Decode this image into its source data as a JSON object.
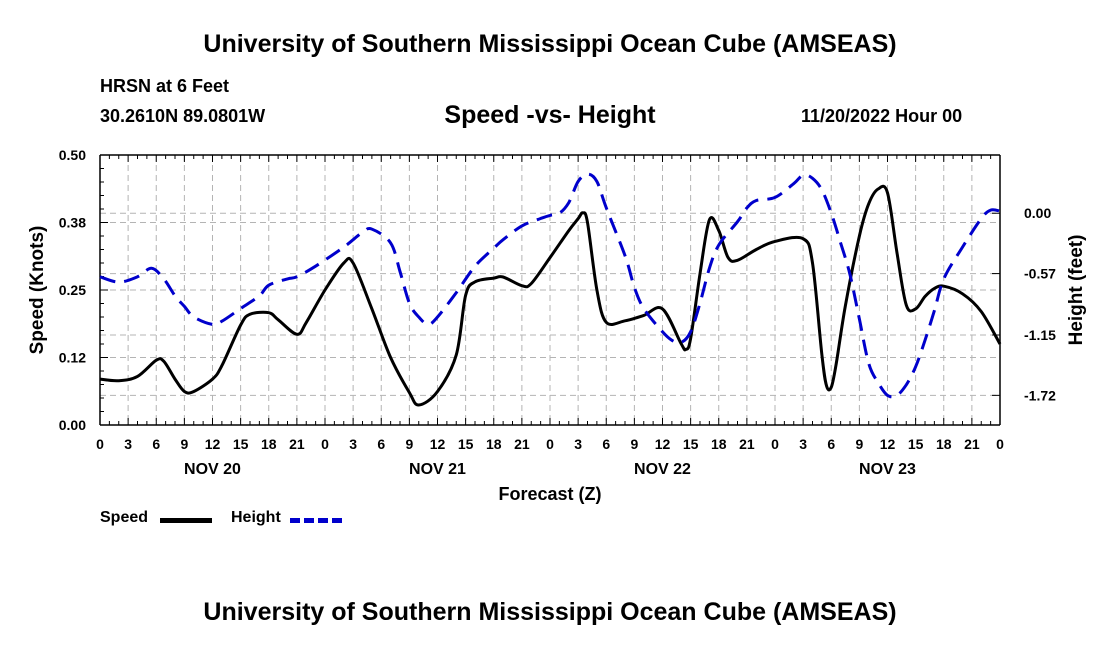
{
  "header": {
    "title": "University of Southern Mississippi Ocean Cube (AMSEAS)",
    "station": "HRSN at 6 Feet",
    "coords": "30.2610N  89.0801W",
    "subtitle": "Speed -vs- Height",
    "datetime": "11/20/2022 Hour 00"
  },
  "footer": {
    "title": "University of Southern Mississippi Ocean Cube (AMSEAS)"
  },
  "legend": {
    "speed_label": "Speed",
    "height_label": "Height"
  },
  "colors": {
    "speed": "#000000",
    "height": "#0000cc",
    "grid": "#b4b4b4"
  },
  "chart_data": {
    "type": "line",
    "xlabel": "Forecast (Z)",
    "ylabel_left": "Speed (Knots)",
    "ylabel_right": "Height (feet)",
    "x_unit": "hours from 11/20/2022 00Z",
    "xlim": [
      0,
      96
    ],
    "x_tick_labels": [
      "0",
      "3",
      "6",
      "9",
      "12",
      "15",
      "18",
      "21",
      "0",
      "3",
      "6",
      "9",
      "12",
      "15",
      "18",
      "21",
      "0",
      "3",
      "6",
      "9",
      "12",
      "15",
      "18",
      "21",
      "0",
      "3",
      "6",
      "9",
      "12",
      "15",
      "18",
      "21",
      "0"
    ],
    "day_labels": [
      {
        "label": "NOV 20",
        "hour": 12
      },
      {
        "label": "NOV 21",
        "hour": 36
      },
      {
        "label": "NOV 22",
        "hour": 60
      },
      {
        "label": "NOV 23",
        "hour": 84
      }
    ],
    "y_left": {
      "min": 0,
      "max": 0.5,
      "ticks": [
        0.0,
        0.125,
        0.25,
        0.375,
        0.5
      ],
      "tick_labels": [
        "0.00",
        "0.12",
        "0.25",
        "0.38",
        "0.50"
      ]
    },
    "y_right": {
      "min": -2.0,
      "max": 0.55,
      "ticks": [
        0.0,
        -0.57,
        -1.15,
        -1.72
      ],
      "tick_labels": [
        "0.00",
        "-0.57",
        "-1.15",
        "-1.72"
      ]
    },
    "series": [
      {
        "name": "Speed",
        "axis": "left",
        "style": "solid",
        "points": [
          [
            0,
            0.085
          ],
          [
            2,
            0.082
          ],
          [
            4,
            0.09
          ],
          [
            6,
            0.12
          ],
          [
            6.8,
            0.118
          ],
          [
            8,
            0.085
          ],
          [
            9,
            0.062
          ],
          [
            10,
            0.062
          ],
          [
            12,
            0.085
          ],
          [
            13,
            0.11
          ],
          [
            15,
            0.185
          ],
          [
            16,
            0.205
          ],
          [
            18,
            0.208
          ],
          [
            19,
            0.195
          ],
          [
            21,
            0.168
          ],
          [
            22,
            0.19
          ],
          [
            24,
            0.25
          ],
          [
            26,
            0.3
          ],
          [
            27,
            0.3
          ],
          [
            29,
            0.215
          ],
          [
            31,
            0.125
          ],
          [
            33,
            0.06
          ],
          [
            34,
            0.037
          ],
          [
            36,
            0.062
          ],
          [
            38,
            0.13
          ],
          [
            39,
            0.24
          ],
          [
            40,
            0.265
          ],
          [
            42,
            0.272
          ],
          [
            43,
            0.274
          ],
          [
            45,
            0.258
          ],
          [
            46,
            0.262
          ],
          [
            48,
            0.31
          ],
          [
            50,
            0.36
          ],
          [
            51,
            0.382
          ],
          [
            51.5,
            0.393
          ],
          [
            52,
            0.375
          ],
          [
            53,
            0.25
          ],
          [
            54,
            0.19
          ],
          [
            56,
            0.193
          ],
          [
            58,
            0.203
          ],
          [
            60,
            0.215
          ],
          [
            62,
            0.15
          ],
          [
            62.5,
            0.14
          ],
          [
            63,
            0.16
          ],
          [
            64,
            0.28
          ],
          [
            65,
            0.38
          ],
          [
            66,
            0.36
          ],
          [
            67,
            0.31
          ],
          [
            68,
            0.305
          ],
          [
            70,
            0.325
          ],
          [
            72,
            0.34
          ],
          [
            75,
            0.345
          ],
          [
            76,
            0.3
          ],
          [
            77,
            0.13
          ],
          [
            77.5,
            0.072
          ],
          [
            78,
            0.07
          ],
          [
            78.5,
            0.11
          ],
          [
            79.5,
            0.22
          ],
          [
            81,
            0.35
          ],
          [
            82,
            0.41
          ],
          [
            83,
            0.437
          ],
          [
            84,
            0.43
          ],
          [
            85,
            0.32
          ],
          [
            86,
            0.222
          ],
          [
            87,
            0.215
          ],
          [
            88,
            0.238
          ],
          [
            89,
            0.253
          ],
          [
            90,
            0.257
          ],
          [
            92,
            0.243
          ],
          [
            94,
            0.21
          ],
          [
            96,
            0.15
          ]
        ]
      },
      {
        "name": "Height",
        "axis": "right",
        "style": "dashed",
        "points": [
          [
            0,
            -0.6
          ],
          [
            2,
            -0.65
          ],
          [
            4,
            -0.6
          ],
          [
            5.5,
            -0.52
          ],
          [
            6.8,
            -0.62
          ],
          [
            8,
            -0.78
          ],
          [
            9,
            -0.88
          ],
          [
            10,
            -0.98
          ],
          [
            12,
            -1.05
          ],
          [
            13,
            -1.02
          ],
          [
            15,
            -0.9
          ],
          [
            17,
            -0.78
          ],
          [
            18,
            -0.68
          ],
          [
            20,
            -0.62
          ],
          [
            21,
            -0.6
          ],
          [
            23,
            -0.5
          ],
          [
            26,
            -0.32
          ],
          [
            28,
            -0.18
          ],
          [
            29,
            -0.15
          ],
          [
            31,
            -0.28
          ],
          [
            32,
            -0.55
          ],
          [
            33,
            -0.85
          ],
          [
            34,
            -0.98
          ],
          [
            35,
            -1.05
          ],
          [
            36,
            -0.98
          ],
          [
            38,
            -0.75
          ],
          [
            40,
            -0.5
          ],
          [
            42,
            -0.33
          ],
          [
            43,
            -0.25
          ],
          [
            45,
            -0.12
          ],
          [
            47,
            -0.05
          ],
          [
            48,
            -0.02
          ],
          [
            49,
            0.0
          ],
          [
            50,
            0.1
          ],
          [
            51,
            0.3
          ],
          [
            52,
            0.37
          ],
          [
            53,
            0.3
          ],
          [
            54,
            0.05
          ],
          [
            56,
            -0.4
          ],
          [
            57,
            -0.7
          ],
          [
            58,
            -0.9
          ],
          [
            60,
            -1.12
          ],
          [
            61,
            -1.2
          ],
          [
            62,
            -1.22
          ],
          [
            63,
            -1.12
          ],
          [
            64,
            -0.85
          ],
          [
            65,
            -0.52
          ],
          [
            66,
            -0.3
          ],
          [
            68,
            -0.08
          ],
          [
            69,
            0.05
          ],
          [
            70,
            0.12
          ],
          [
            72,
            0.15
          ],
          [
            74,
            0.28
          ],
          [
            75,
            0.36
          ],
          [
            76,
            0.33
          ],
          [
            77,
            0.22
          ],
          [
            78,
            0.0
          ],
          [
            79,
            -0.28
          ],
          [
            80,
            -0.58
          ],
          [
            81,
            -1.0
          ],
          [
            82,
            -1.42
          ],
          [
            83,
            -1.6
          ],
          [
            84,
            -1.72
          ],
          [
            85,
            -1.72
          ],
          [
            86,
            -1.62
          ],
          [
            87,
            -1.45
          ],
          [
            88,
            -1.2
          ],
          [
            89,
            -0.92
          ],
          [
            90,
            -0.62
          ],
          [
            92,
            -0.32
          ],
          [
            94,
            -0.05
          ],
          [
            95,
            0.03
          ],
          [
            96,
            0.02
          ]
        ]
      }
    ]
  }
}
